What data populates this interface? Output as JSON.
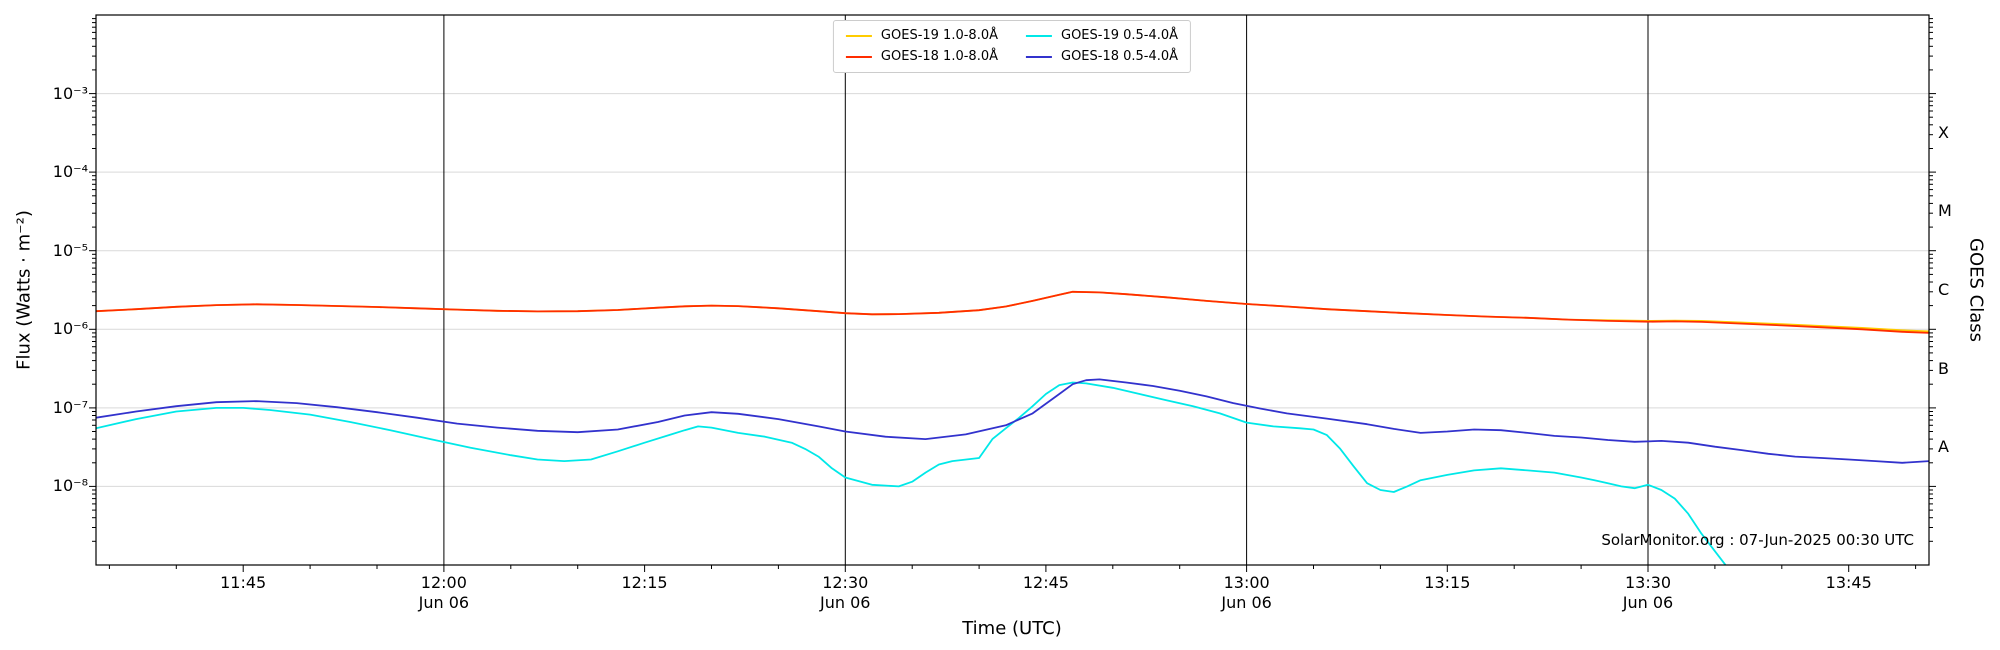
{
  "annotation": "SolarMonitor.org : 07-Jun-2025 00:30 UTC",
  "chart_data": {
    "type": "line",
    "title": "",
    "xlabel": "Time (UTC)",
    "ylabel": "Flux (Watts · m⁻²)",
    "ylabel_right": "GOES Class",
    "x_domain_minutes": [
      694,
      831
    ],
    "x_minor_step_minutes": 5,
    "y_log_range": [
      -9,
      -2
    ],
    "grid": "horizontal-decades",
    "legend_position": "top-center",
    "x_major_ticks": [
      {
        "minute": 705,
        "label": "11:45",
        "sublabel": ""
      },
      {
        "minute": 720,
        "label": "12:00",
        "sublabel": "Jun 06"
      },
      {
        "minute": 735,
        "label": "12:15",
        "sublabel": ""
      },
      {
        "minute": 750,
        "label": "12:30",
        "sublabel": "Jun 06"
      },
      {
        "minute": 765,
        "label": "12:45",
        "sublabel": ""
      },
      {
        "minute": 780,
        "label": "13:00",
        "sublabel": "Jun 06"
      },
      {
        "minute": 795,
        "label": "13:15",
        "sublabel": ""
      },
      {
        "minute": 810,
        "label": "13:30",
        "sublabel": "Jun 06"
      },
      {
        "minute": 825,
        "label": "13:45",
        "sublabel": ""
      }
    ],
    "y_major_ticks": [
      {
        "exp": -3,
        "label": "10⁻³"
      },
      {
        "exp": -4,
        "label": "10⁻⁴"
      },
      {
        "exp": -5,
        "label": "10⁻⁵"
      },
      {
        "exp": -6,
        "label": "10⁻⁶"
      },
      {
        "exp": -7,
        "label": "10⁻⁷"
      },
      {
        "exp": -8,
        "label": "10⁻⁸"
      }
    ],
    "goes_classes": [
      {
        "label": "X",
        "log_center": -3.5
      },
      {
        "label": "M",
        "log_center": -4.5
      },
      {
        "label": "C",
        "log_center": -5.5
      },
      {
        "label": "B",
        "log_center": -6.5
      },
      {
        "label": "A",
        "log_center": -7.5
      }
    ],
    "day_lines_minutes": [
      720,
      750,
      780,
      810
    ],
    "series": [
      {
        "name": "GOES-19 1.0-8.0Å",
        "color": "#ffcc00",
        "points": [
          [
            694,
            1.7e-06
          ],
          [
            697,
            1.8e-06
          ],
          [
            700,
            1.93e-06
          ],
          [
            703,
            2.03e-06
          ],
          [
            706,
            2.08e-06
          ],
          [
            709,
            2.04e-06
          ],
          [
            712,
            1.98e-06
          ],
          [
            715,
            1.92e-06
          ],
          [
            718,
            1.85e-06
          ],
          [
            721,
            1.78e-06
          ],
          [
            724,
            1.72e-06
          ],
          [
            727,
            1.69e-06
          ],
          [
            730,
            1.7e-06
          ],
          [
            733,
            1.76e-06
          ],
          [
            736,
            1.88e-06
          ],
          [
            738,
            1.96e-06
          ],
          [
            740,
            2e-06
          ],
          [
            742,
            1.97e-06
          ],
          [
            745,
            1.85e-06
          ],
          [
            748,
            1.7e-06
          ],
          [
            750,
            1.6e-06
          ],
          [
            752,
            1.55e-06
          ],
          [
            754,
            1.56e-06
          ],
          [
            757,
            1.62e-06
          ],
          [
            760,
            1.75e-06
          ],
          [
            762,
            1.95e-06
          ],
          [
            764,
            2.3e-06
          ],
          [
            766,
            2.75e-06
          ],
          [
            767,
            3e-06
          ],
          [
            769,
            2.95e-06
          ],
          [
            771,
            2.8e-06
          ],
          [
            774,
            2.55e-06
          ],
          [
            777,
            2.3e-06
          ],
          [
            780,
            2.1e-06
          ],
          [
            783,
            1.95e-06
          ],
          [
            786,
            1.8e-06
          ],
          [
            789,
            1.7e-06
          ],
          [
            792,
            1.6e-06
          ],
          [
            795,
            1.52e-06
          ],
          [
            798,
            1.45e-06
          ],
          [
            801,
            1.4e-06
          ],
          [
            804,
            1.33e-06
          ],
          [
            807,
            1.3e-06
          ],
          [
            810,
            1.28e-06
          ],
          [
            812,
            1.29e-06
          ],
          [
            814,
            1.28e-06
          ],
          [
            817,
            1.22e-06
          ],
          [
            820,
            1.16e-06
          ],
          [
            823,
            1.1e-06
          ],
          [
            826,
            1.04e-06
          ],
          [
            829,
            9.7e-07
          ],
          [
            831,
            9.4e-07
          ]
        ]
      },
      {
        "name": "GOES-18 1.0-8.0Å",
        "color": "#ff2d00",
        "points": [
          [
            694,
            1.7e-06
          ],
          [
            697,
            1.8e-06
          ],
          [
            700,
            1.93e-06
          ],
          [
            703,
            2.03e-06
          ],
          [
            706,
            2.08e-06
          ],
          [
            709,
            2.04e-06
          ],
          [
            712,
            1.98e-06
          ],
          [
            715,
            1.92e-06
          ],
          [
            718,
            1.85e-06
          ],
          [
            721,
            1.78e-06
          ],
          [
            724,
            1.72e-06
          ],
          [
            727,
            1.69e-06
          ],
          [
            730,
            1.7e-06
          ],
          [
            733,
            1.76e-06
          ],
          [
            736,
            1.88e-06
          ],
          [
            738,
            1.96e-06
          ],
          [
            740,
            2e-06
          ],
          [
            742,
            1.97e-06
          ],
          [
            745,
            1.85e-06
          ],
          [
            748,
            1.7e-06
          ],
          [
            750,
            1.6e-06
          ],
          [
            752,
            1.55e-06
          ],
          [
            754,
            1.56e-06
          ],
          [
            757,
            1.62e-06
          ],
          [
            760,
            1.75e-06
          ],
          [
            762,
            1.95e-06
          ],
          [
            764,
            2.3e-06
          ],
          [
            766,
            2.75e-06
          ],
          [
            767,
            3e-06
          ],
          [
            769,
            2.95e-06
          ],
          [
            771,
            2.8e-06
          ],
          [
            774,
            2.55e-06
          ],
          [
            777,
            2.3e-06
          ],
          [
            780,
            2.1e-06
          ],
          [
            783,
            1.95e-06
          ],
          [
            786,
            1.8e-06
          ],
          [
            789,
            1.7e-06
          ],
          [
            792,
            1.6e-06
          ],
          [
            795,
            1.52e-06
          ],
          [
            798,
            1.45e-06
          ],
          [
            801,
            1.4e-06
          ],
          [
            804,
            1.33e-06
          ],
          [
            807,
            1.28e-06
          ],
          [
            810,
            1.25e-06
          ],
          [
            812,
            1.26e-06
          ],
          [
            814,
            1.24e-06
          ],
          [
            817,
            1.18e-06
          ],
          [
            820,
            1.12e-06
          ],
          [
            823,
            1.06e-06
          ],
          [
            826,
            1e-06
          ],
          [
            829,
            9.3e-07
          ],
          [
            831,
            9e-07
          ]
        ]
      },
      {
        "name": "GOES-19 0.5-4.0Å",
        "color": "#00e8e8",
        "points": [
          [
            694,
            5.5e-08
          ],
          [
            697,
            7.2e-08
          ],
          [
            700,
            9e-08
          ],
          [
            703,
            1e-07
          ],
          [
            705,
            1e-07
          ],
          [
            707,
            9.4e-08
          ],
          [
            710,
            8.2e-08
          ],
          [
            713,
            6.6e-08
          ],
          [
            716,
            5.2e-08
          ],
          [
            719,
            4e-08
          ],
          [
            722,
            3.1e-08
          ],
          [
            725,
            2.5e-08
          ],
          [
            727,
            2.2e-08
          ],
          [
            729,
            2.1e-08
          ],
          [
            731,
            2.2e-08
          ],
          [
            733,
            2.8e-08
          ],
          [
            735,
            3.6e-08
          ],
          [
            737,
            4.6e-08
          ],
          [
            738,
            5.2e-08
          ],
          [
            739,
            5.8e-08
          ],
          [
            740,
            5.6e-08
          ],
          [
            742,
            4.8e-08
          ],
          [
            744,
            4.3e-08
          ],
          [
            746,
            3.6e-08
          ],
          [
            747,
            3e-08
          ],
          [
            748,
            2.4e-08
          ],
          [
            749,
            1.7e-08
          ],
          [
            750,
            1.3e-08
          ],
          [
            752,
            1.05e-08
          ],
          [
            754,
            1e-08
          ],
          [
            755,
            1.15e-08
          ],
          [
            756,
            1.5e-08
          ],
          [
            757,
            1.9e-08
          ],
          [
            758,
            2.1e-08
          ],
          [
            760,
            2.3e-08
          ],
          [
            761,
            4e-08
          ],
          [
            762,
            5.5e-08
          ],
          [
            763,
            7.5e-08
          ],
          [
            764,
            1.05e-07
          ],
          [
            765,
            1.5e-07
          ],
          [
            766,
            1.95e-07
          ],
          [
            767,
            2.1e-07
          ],
          [
            768,
            2.05e-07
          ],
          [
            770,
            1.8e-07
          ],
          [
            772,
            1.5e-07
          ],
          [
            774,
            1.25e-07
          ],
          [
            776,
            1.05e-07
          ],
          [
            778,
            8.5e-08
          ],
          [
            780,
            6.5e-08
          ],
          [
            782,
            5.8e-08
          ],
          [
            784,
            5.5e-08
          ],
          [
            785,
            5.3e-08
          ],
          [
            786,
            4.5e-08
          ],
          [
            787,
            3e-08
          ],
          [
            788,
            1.8e-08
          ],
          [
            789,
            1.1e-08
          ],
          [
            790,
            9e-09
          ],
          [
            791,
            8.5e-09
          ],
          [
            792,
            1e-08
          ],
          [
            793,
            1.2e-08
          ],
          [
            795,
            1.4e-08
          ],
          [
            797,
            1.6e-08
          ],
          [
            799,
            1.7e-08
          ],
          [
            801,
            1.6e-08
          ],
          [
            803,
            1.5e-08
          ],
          [
            805,
            1.3e-08
          ],
          [
            806,
            1.2e-08
          ],
          [
            807,
            1.1e-08
          ],
          [
            808,
            1e-08
          ],
          [
            809,
            9.5e-09
          ],
          [
            810,
            1.05e-08
          ],
          [
            811,
            9e-09
          ],
          [
            812,
            7e-09
          ],
          [
            813,
            4.5e-09
          ],
          [
            814,
            2.5e-09
          ],
          [
            815,
            1.5e-09
          ],
          [
            816,
            9e-10
          ],
          [
            817,
            5e-10
          ]
        ]
      },
      {
        "name": "GOES-18 0.5-4.0Å",
        "color": "#3232cd",
        "points": [
          [
            694,
            7.5e-08
          ],
          [
            697,
            9e-08
          ],
          [
            700,
            1.05e-07
          ],
          [
            703,
            1.18e-07
          ],
          [
            706,
            1.22e-07
          ],
          [
            709,
            1.15e-07
          ],
          [
            712,
            1.02e-07
          ],
          [
            715,
            8.8e-08
          ],
          [
            718,
            7.5e-08
          ],
          [
            721,
            6.3e-08
          ],
          [
            724,
            5.6e-08
          ],
          [
            727,
            5.1e-08
          ],
          [
            730,
            4.9e-08
          ],
          [
            733,
            5.3e-08
          ],
          [
            736,
            6.6e-08
          ],
          [
            738,
            8e-08
          ],
          [
            740,
            8.8e-08
          ],
          [
            742,
            8.4e-08
          ],
          [
            745,
            7.2e-08
          ],
          [
            748,
            5.8e-08
          ],
          [
            750,
            5e-08
          ],
          [
            753,
            4.3e-08
          ],
          [
            756,
            4e-08
          ],
          [
            759,
            4.6e-08
          ],
          [
            762,
            6e-08
          ],
          [
            764,
            8.5e-08
          ],
          [
            766,
            1.5e-07
          ],
          [
            767,
            2e-07
          ],
          [
            768,
            2.25e-07
          ],
          [
            769,
            2.3e-07
          ],
          [
            771,
            2.1e-07
          ],
          [
            773,
            1.9e-07
          ],
          [
            775,
            1.65e-07
          ],
          [
            777,
            1.4e-07
          ],
          [
            779,
            1.15e-07
          ],
          [
            781,
            9.8e-08
          ],
          [
            783,
            8.5e-08
          ],
          [
            786,
            7.3e-08
          ],
          [
            789,
            6.2e-08
          ],
          [
            791,
            5.4e-08
          ],
          [
            793,
            4.8e-08
          ],
          [
            795,
            5e-08
          ],
          [
            797,
            5.3e-08
          ],
          [
            799,
            5.2e-08
          ],
          [
            801,
            4.8e-08
          ],
          [
            803,
            4.4e-08
          ],
          [
            805,
            4.2e-08
          ],
          [
            807,
            3.9e-08
          ],
          [
            809,
            3.7e-08
          ],
          [
            811,
            3.8e-08
          ],
          [
            813,
            3.6e-08
          ],
          [
            815,
            3.2e-08
          ],
          [
            817,
            2.9e-08
          ],
          [
            819,
            2.6e-08
          ],
          [
            821,
            2.4e-08
          ],
          [
            823,
            2.3e-08
          ],
          [
            825,
            2.2e-08
          ],
          [
            827,
            2.1e-08
          ],
          [
            829,
            2e-08
          ],
          [
            831,
            2.1e-08
          ]
        ]
      }
    ]
  }
}
